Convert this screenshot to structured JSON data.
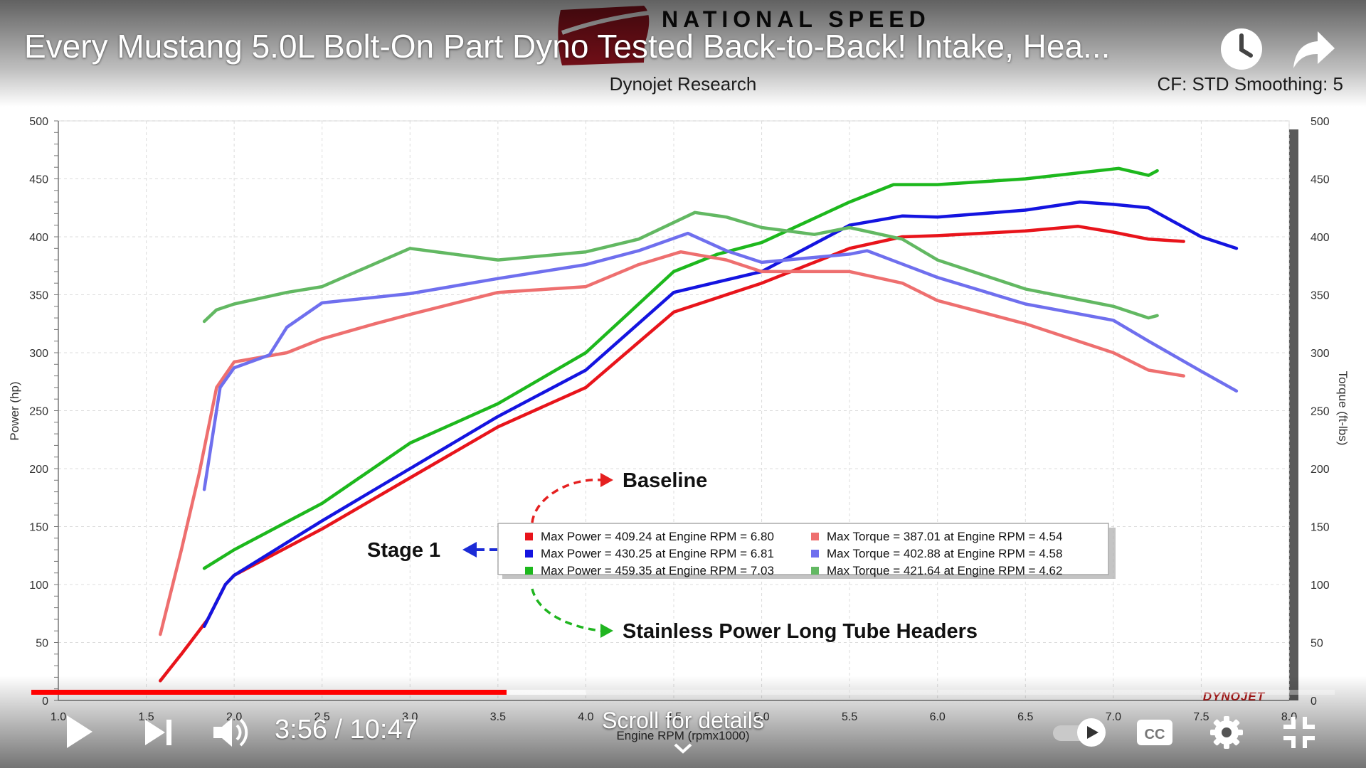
{
  "player": {
    "title": "Every Mustang 5.0L Bolt-On Part Dyno Tested Back-to-Back! Intake, Hea...",
    "current_time": "3:56",
    "duration": "10:47",
    "time_display": "3:56 / 10:47",
    "progress_fraction": 0.3646,
    "buffered_fraction": 0.4258,
    "scroll_hint": "Scroll for details",
    "icons": [
      "watch-later-icon",
      "share-icon",
      "play-icon",
      "next-icon",
      "volume-icon",
      "autoplay-toggle",
      "cc-icon",
      "settings-icon",
      "exit-fullscreen-icon",
      "chevron-down-icon"
    ],
    "accent_color": "#ff0000"
  },
  "video_frame": {
    "brand_logo": "NATIONAL SPEED",
    "header_center": "Dynojet Research",
    "header_right": "CF: STD Smoothing: 5",
    "watermark": "DYNOJET",
    "annotations": {
      "baseline": "Baseline",
      "stage1": "Stage 1",
      "headers": "Stainless Power Long Tube Headers"
    },
    "legend": [
      {
        "text": "Max Power = 409.24 at Engine RPM = 6.80",
        "color": "#e8141b"
      },
      {
        "text": "Max Power = 430.25 at Engine RPM = 6.81",
        "color": "#1414e0"
      },
      {
        "text": "Max Power = 459.35 at Engine RPM = 7.03",
        "color": "#1db81d"
      },
      {
        "text": "Max Torque = 387.01 at Engine RPM = 4.54",
        "color": "#ee6f6f"
      },
      {
        "text": "Max Torque = 402.88 at Engine RPM = 4.58",
        "color": "#6f6fee"
      },
      {
        "text": "Max Torque = 421.64 at Engine RPM = 4.62",
        "color": "#62b862"
      }
    ]
  },
  "chart_data": {
    "type": "line",
    "title": "Dynojet Research",
    "xlabel": "Engine RPM (rpmx1000)",
    "ylabel": "Power (hp)",
    "y2label": "Torque (ft-lbs)",
    "xlim": [
      1.0,
      8.0
    ],
    "ylim": [
      0,
      500
    ],
    "y2lim": [
      0,
      500
    ],
    "x_ticks": [
      "1.0",
      "1.5",
      "2.0",
      "2.5",
      "3.0",
      "3.5",
      "4.0",
      "4.5",
      "5.0",
      "5.5",
      "6.0",
      "6.5",
      "7.0",
      "7.5",
      "8.0"
    ],
    "y_ticks": [
      "0",
      "50",
      "100",
      "150",
      "200",
      "250",
      "300",
      "350",
      "400",
      "450",
      "500"
    ],
    "grid": true,
    "series": [
      {
        "color": "#e8141b",
        "axis": "power",
        "x": [
          1.58,
          1.7,
          1.85,
          1.95,
          2.0,
          2.5,
          3.0,
          3.5,
          4.0,
          4.5,
          5.0,
          5.5,
          5.8,
          6.0,
          6.5,
          6.8,
          7.0,
          7.2,
          7.4
        ],
        "y": [
          17,
          40,
          70,
          100,
          108,
          148,
          192,
          236,
          270,
          335,
          360,
          390,
          400,
          401,
          405,
          409,
          404,
          398,
          396
        ]
      },
      {
        "color": "#1414e0",
        "axis": "power",
        "x": [
          1.83,
          1.95,
          2.0,
          2.5,
          3.0,
          3.5,
          4.0,
          4.5,
          5.0,
          5.5,
          5.8,
          6.0,
          6.5,
          6.81,
          7.0,
          7.2,
          7.5,
          7.7
        ],
        "y": [
          64,
          100,
          108,
          155,
          200,
          245,
          285,
          352,
          370,
          410,
          418,
          417,
          423,
          430,
          428,
          425,
          400,
          390
        ]
      },
      {
        "color": "#1db81d",
        "axis": "power",
        "x": [
          1.83,
          2.0,
          2.5,
          3.0,
          3.5,
          4.0,
          4.5,
          4.75,
          5.0,
          5.5,
          5.75,
          6.0,
          6.5,
          7.03,
          7.2,
          7.25
        ],
        "y": [
          114,
          130,
          170,
          222,
          256,
          300,
          370,
          385,
          395,
          430,
          445,
          445,
          450,
          459,
          453,
          457
        ]
      },
      {
        "color": "#ee6f6f",
        "axis": "torque",
        "x": [
          1.58,
          1.7,
          1.8,
          1.9,
          2.0,
          2.3,
          2.5,
          2.8,
          3.0,
          3.5,
          4.0,
          4.3,
          4.54,
          4.8,
          5.0,
          5.5,
          5.8,
          6.0,
          6.5,
          7.0,
          7.2,
          7.4
        ],
        "y": [
          57,
          130,
          195,
          270,
          292,
          300,
          312,
          325,
          333,
          352,
          357,
          376,
          387,
          380,
          370,
          370,
          360,
          345,
          325,
          300,
          285,
          280
        ]
      },
      {
        "color": "#6f6fee",
        "axis": "torque",
        "x": [
          1.83,
          1.92,
          2.0,
          2.2,
          2.3,
          2.5,
          3.0,
          3.5,
          4.0,
          4.3,
          4.58,
          4.8,
          5.0,
          5.5,
          5.6,
          6.0,
          6.5,
          7.0,
          7.2,
          7.5,
          7.7
        ],
        "y": [
          182,
          270,
          287,
          298,
          322,
          343,
          351,
          364,
          376,
          388,
          403,
          388,
          378,
          385,
          388,
          365,
          342,
          328,
          310,
          284,
          267
        ]
      },
      {
        "color": "#62b862",
        "axis": "torque",
        "x": [
          1.83,
          1.9,
          2.0,
          2.3,
          2.5,
          3.0,
          3.5,
          4.0,
          4.3,
          4.62,
          4.8,
          5.0,
          5.3,
          5.5,
          5.8,
          6.0,
          6.5,
          7.0,
          7.2,
          7.25
        ],
        "y": [
          327,
          337,
          342,
          352,
          357,
          390,
          380,
          387,
          398,
          421,
          417,
          408,
          402,
          408,
          398,
          380,
          355,
          340,
          330,
          332
        ]
      }
    ]
  }
}
